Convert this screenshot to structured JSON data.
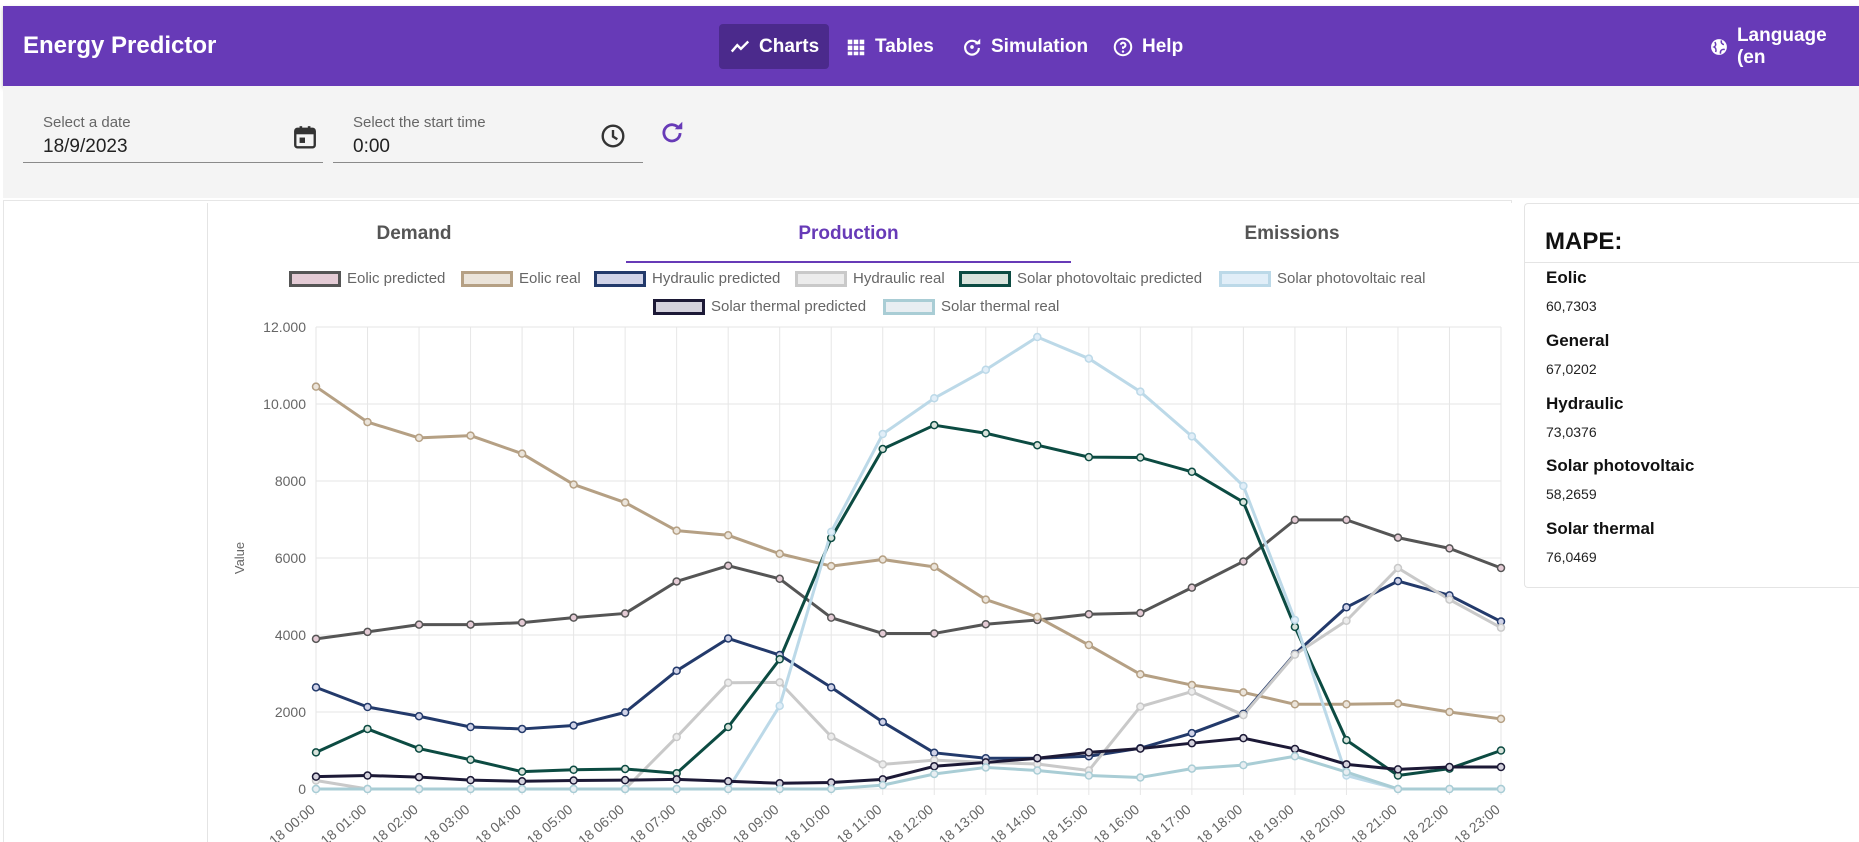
{
  "app": {
    "title": "Energy Predictor",
    "nav": [
      {
        "label": "Charts",
        "icon": "line-chart-icon",
        "active": true
      },
      {
        "label": "Tables",
        "icon": "grid-icon",
        "active": false
      },
      {
        "label": "Simulation",
        "icon": "replay-icon",
        "active": false
      },
      {
        "label": "Help",
        "icon": "help-icon",
        "active": false
      }
    ],
    "language_label": "Language (en"
  },
  "filters": {
    "date_label": "Select a date",
    "date_value": "18/9/2023",
    "time_label": "Select the start time",
    "time_value": "0:00"
  },
  "tabs": [
    {
      "label": "Demand",
      "active": false
    },
    {
      "label": "Production",
      "active": true
    },
    {
      "label": "Emissions",
      "active": false
    }
  ],
  "mape": {
    "title": "MAPE:",
    "items": [
      {
        "name": "Eolic",
        "value": "60,7303"
      },
      {
        "name": "General",
        "value": "67,0202"
      },
      {
        "name": "Hydraulic",
        "value": "73,0376"
      },
      {
        "name": "Solar photovoltaic",
        "value": "58,2659"
      },
      {
        "name": "Solar thermal",
        "value": "76,0469"
      }
    ]
  },
  "colors": {
    "accent": "#673ab7",
    "accent_dark": "#4b2a8c"
  },
  "chart_data": {
    "type": "line",
    "ylabel": "Value",
    "ylim": [
      0,
      12000
    ],
    "yticks": [
      0,
      2000,
      4000,
      6000,
      8000,
      10000,
      12000
    ],
    "ytick_labels": [
      "0",
      "2000",
      "4000",
      "6000",
      "8000",
      "10.000",
      "12.000"
    ],
    "categories": [
      "2023-09-18 00:00",
      "2023-09-18 01:00",
      "2023-09-18 02:00",
      "2023-09-18 03:00",
      "2023-09-18 04:00",
      "2023-09-18 05:00",
      "2023-09-18 06:00",
      "2023-09-18 07:00",
      "2023-09-18 08:00",
      "2023-09-18 09:00",
      "2023-09-18 10:00",
      "2023-09-18 11:00",
      "2023-09-18 12:00",
      "2023-09-18 13:00",
      "2023-09-18 14:00",
      "2023-09-18 15:00",
      "2023-09-18 16:00",
      "2023-09-18 17:00",
      "2023-09-18 18:00",
      "2023-09-18 19:00",
      "2023-09-18 20:00",
      "2023-09-18 21:00",
      "2023-09-18 22:00",
      "2023-09-18 23:00"
    ],
    "xtick_labels": [
      "-18 00:00",
      "-18 01:00",
      "-18 02:00",
      "-18 03:00",
      "-18 04:00",
      "-18 05:00",
      "-18 06:00",
      "-18 07:00",
      "-18 08:00",
      "-18 09:00",
      "-18 10:00",
      "-18 11:00",
      "-18 12:00",
      "-18 13:00",
      "-18 14:00",
      "-18 15:00",
      "-18 16:00",
      "-18 17:00",
      "-18 18:00",
      "-18 19:00",
      "-18 20:00",
      "-18 21:00",
      "-18 22:00",
      "-18 23:00"
    ],
    "series": [
      {
        "name": "Eolic predicted",
        "stroke": "#555555",
        "fill": "#e4cbd5",
        "values": [
          3900,
          4080,
          4270,
          4270,
          4320,
          4450,
          4560,
          5390,
          5800,
          5460,
          4450,
          4040,
          4040,
          4280,
          4390,
          4540,
          4570,
          5230,
          5910,
          6990,
          6990,
          6530,
          6250,
          5740
        ]
      },
      {
        "name": "Eolic real",
        "stroke": "#b5a084",
        "fill": "#ebe4da",
        "values": [
          10450,
          9530,
          9120,
          9180,
          8710,
          7910,
          7440,
          6710,
          6590,
          6110,
          5790,
          5960,
          5770,
          4920,
          4470,
          3740,
          2980,
          2700,
          2510,
          2200,
          2200,
          2220,
          2000,
          1820
        ]
      },
      {
        "name": "Hydraulic predicted",
        "stroke": "#233a6b",
        "fill": "#d0d3e8",
        "values": [
          2640,
          2130,
          1890,
          1610,
          1560,
          1650,
          1990,
          3070,
          3910,
          3480,
          2640,
          1740,
          940,
          800,
          800,
          850,
          1060,
          1450,
          1950,
          3510,
          4720,
          5400,
          5030,
          4350
        ]
      },
      {
        "name": "Hydraulic real",
        "stroke": "#c9c9c9",
        "fill": "#ececec",
        "values": [
          220,
          0,
          0,
          0,
          0,
          0,
          0,
          1350,
          2760,
          2770,
          1360,
          640,
          750,
          690,
          650,
          480,
          2140,
          2530,
          1920,
          3490,
          4370,
          5740,
          4920,
          4190
        ]
      },
      {
        "name": "Solar photovoltaic predicted",
        "stroke": "#0c4b42",
        "fill": "#d9e3dc",
        "values": [
          950,
          1560,
          1050,
          760,
          450,
          500,
          520,
          410,
          1610,
          3370,
          6520,
          8830,
          9450,
          9240,
          8930,
          8620,
          8610,
          8240,
          7450,
          4210,
          1270,
          350,
          530,
          1000
        ]
      },
      {
        "name": "Solar photovoltaic real",
        "stroke": "#bcd9e8",
        "fill": "#e1eef8",
        "values": [
          0,
          0,
          0,
          0,
          0,
          0,
          0,
          0,
          0,
          2160,
          6680,
          9220,
          10150,
          10890,
          11740,
          11180,
          10320,
          9160,
          7870,
          4390,
          350,
          0,
          0,
          0
        ]
      },
      {
        "name": "Solar thermal predicted",
        "stroke": "#1c1936",
        "fill": "#d4d2dd",
        "values": [
          320,
          350,
          310,
          230,
          200,
          220,
          230,
          250,
          200,
          150,
          170,
          250,
          590,
          690,
          800,
          950,
          1050,
          1190,
          1320,
          1040,
          640,
          510,
          570,
          570
        ]
      },
      {
        "name": "Solar thermal real",
        "stroke": "#a9cdd5",
        "fill": "#e8eef2",
        "values": [
          0,
          0,
          0,
          0,
          0,
          0,
          0,
          0,
          0,
          0,
          0,
          100,
          390,
          560,
          480,
          350,
          300,
          530,
          620,
          850,
          440,
          0,
          0,
          0
        ]
      }
    ]
  }
}
